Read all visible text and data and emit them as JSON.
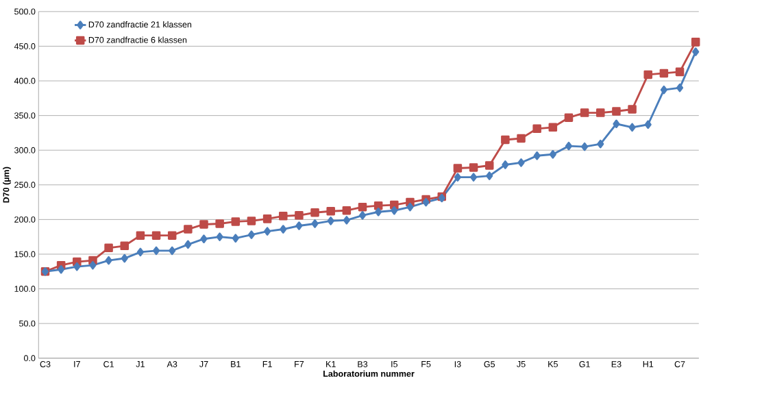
{
  "chart_data": {
    "type": "line",
    "xlabel": "Laboratorium nummer",
    "ylabel": "D70 (µm)",
    "categories": [
      "C3",
      null,
      "I7",
      null,
      "C1",
      null,
      "J1",
      null,
      "A3",
      null,
      "J7",
      null,
      "B1",
      null,
      "F1",
      null,
      "F7",
      null,
      "K1",
      null,
      "B3",
      null,
      "I5",
      null,
      "F5",
      null,
      "I3",
      null,
      "G5",
      null,
      "J5",
      null,
      "K5",
      null,
      "G1",
      null,
      "E3",
      null,
      "H1",
      null,
      "C7",
      null
    ],
    "series": [
      {
        "name": "D70 zandfractie 21 klassen",
        "color": "#4a7ebb",
        "marker": "diamond",
        "values": [
          125,
          128,
          132,
          134,
          141,
          144,
          153,
          155,
          155,
          164,
          172,
          175,
          173,
          178,
          183,
          186,
          191,
          194,
          198,
          199,
          206,
          211,
          213,
          218,
          225,
          231,
          261,
          261,
          263,
          279,
          282,
          292,
          294,
          306,
          305,
          309,
          338,
          333,
          337,
          387,
          390,
          442
        ]
      },
      {
        "name": "D70 zandfractie 6 klassen",
        "color": "#be4b48",
        "marker": "square",
        "values": [
          125,
          134,
          139,
          141,
          159,
          162,
          177,
          177,
          177,
          186,
          193,
          194,
          197,
          198,
          201,
          205,
          206,
          210,
          212,
          213,
          218,
          220,
          221,
          225,
          229,
          233,
          274,
          275,
          278,
          315,
          317,
          331,
          333,
          347,
          354,
          354,
          356,
          359,
          409,
          411,
          413,
          456
        ]
      }
    ],
    "ylim": [
      0,
      500
    ],
    "yticks": [
      {
        "value": 0,
        "label": "0.0"
      },
      {
        "value": 50,
        "label": "50.0"
      },
      {
        "value": 100,
        "label": "100.0"
      },
      {
        "value": 150,
        "label": "150.0"
      },
      {
        "value": 200,
        "label": "200.0"
      },
      {
        "value": 250,
        "label": "250.0"
      },
      {
        "value": 300,
        "label": "300.0"
      },
      {
        "value": 350,
        "label": "350.0"
      },
      {
        "value": 400,
        "label": "400.0"
      },
      {
        "value": 450,
        "label": "450.0"
      },
      {
        "value": 500,
        "label": "500.0"
      }
    ],
    "grid": "y",
    "legend": "top left",
    "line_style": "solid"
  }
}
